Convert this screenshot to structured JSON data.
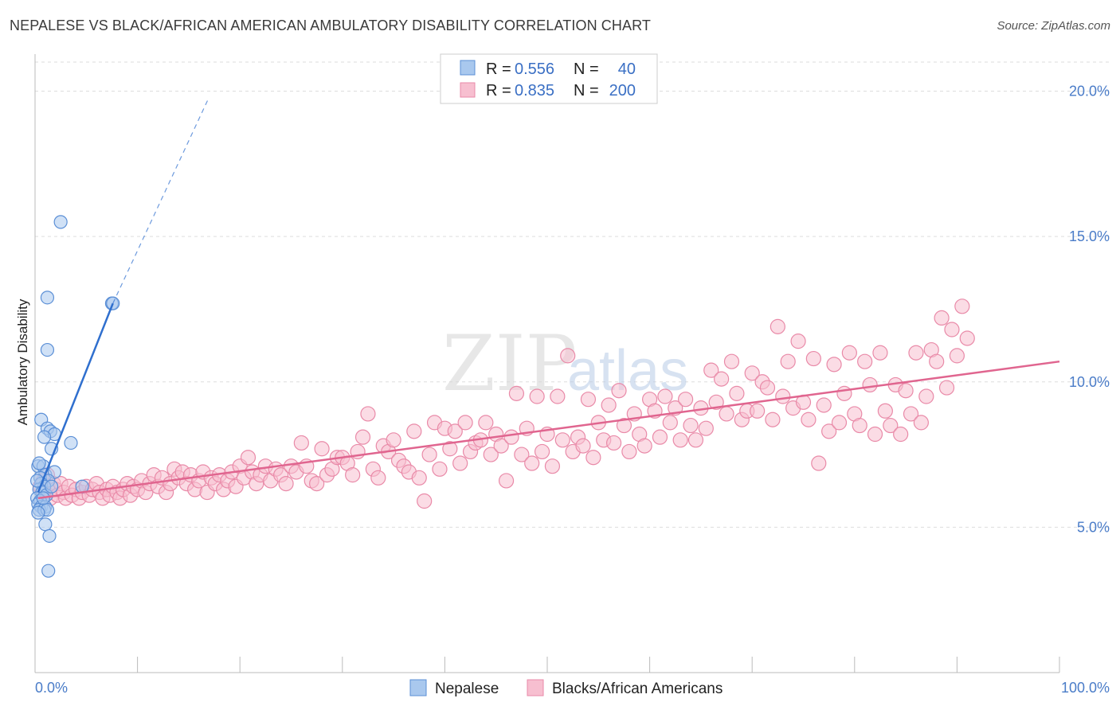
{
  "header": {
    "title": "NEPALESE VS BLACK/AFRICAN AMERICAN AMBULATORY DISABILITY CORRELATION CHART",
    "source": "Source: ZipAtlas.com"
  },
  "watermark": {
    "zip": "ZIP",
    "atlas": "atlas"
  },
  "legend_top": [
    {
      "r_label": "R =",
      "r_value": "0.556",
      "n_label": "N =",
      "n_value": "40"
    },
    {
      "r_label": "R =",
      "r_value": "0.835",
      "n_label": "N =",
      "n_value": "200"
    }
  ],
  "legend_bottom": [
    {
      "label": "Nepalese"
    },
    {
      "label": "Blacks/African Americans"
    }
  ],
  "colors": {
    "nepalese_fill": "#a9c8ee",
    "nepalese_stroke": "#5b8fd6",
    "nepalese_line": "#2f6fce",
    "black_fill": "#f7bfd0",
    "black_stroke": "#e98aa8",
    "black_line": "#e0658f",
    "grid": "#dddddd",
    "tick_text": "#4a7cc8"
  },
  "chart_data": {
    "type": "scatter",
    "title": "NEPALESE VS BLACK/AFRICAN AMERICAN AMBULATORY DISABILITY CORRELATION CHART",
    "xlabel": "",
    "ylabel": "Ambulatory Disability",
    "xlim": [
      0,
      100
    ],
    "ylim": [
      0,
      21
    ],
    "x_tick_labels": [
      "0.0%",
      "100.0%"
    ],
    "y_ticks": [
      5,
      10,
      15,
      20
    ],
    "y_tick_labels": [
      "5.0%",
      "10.0%",
      "15.0%",
      "20.0%"
    ],
    "grid": true,
    "legend_position": "top-center",
    "series": [
      {
        "name": "Nepalese",
        "R": 0.556,
        "N": 40,
        "trend": {
          "x": [
            0.3,
            7.6
          ],
          "y": [
            6.2,
            12.7
          ],
          "extends_dashed_to": [
            17,
            19.8
          ]
        },
        "points": [
          [
            2.5,
            15.5
          ],
          [
            1.2,
            12.9
          ],
          [
            7.5,
            12.7
          ],
          [
            7.6,
            12.7
          ],
          [
            1.2,
            11.1
          ],
          [
            0.6,
            8.7
          ],
          [
            1.2,
            8.4
          ],
          [
            1.5,
            8.3
          ],
          [
            1.9,
            8.2
          ],
          [
            0.9,
            8.1
          ],
          [
            3.5,
            7.9
          ],
          [
            1.6,
            7.7
          ],
          [
            0.3,
            7.1
          ],
          [
            0.8,
            7.1
          ],
          [
            1.0,
            6.8
          ],
          [
            1.9,
            6.9
          ],
          [
            0.5,
            6.7
          ],
          [
            1.3,
            6.6
          ],
          [
            0.6,
            6.5
          ],
          [
            0.9,
            6.4
          ],
          [
            4.6,
            6.4
          ],
          [
            0.4,
            6.3
          ],
          [
            0.7,
            6.2
          ],
          [
            1.1,
            6.1
          ],
          [
            0.2,
            6.0
          ],
          [
            0.5,
            5.9
          ],
          [
            0.3,
            5.8
          ],
          [
            0.6,
            5.7
          ],
          [
            1.0,
            5.7
          ],
          [
            0.4,
            5.6
          ],
          [
            0.9,
            5.6
          ],
          [
            1.2,
            5.6
          ],
          [
            0.3,
            5.5
          ],
          [
            1.0,
            5.1
          ],
          [
            1.4,
            4.7
          ],
          [
            1.3,
            3.5
          ],
          [
            0.2,
            6.6
          ],
          [
            0.4,
            7.2
          ],
          [
            0.8,
            6.0
          ],
          [
            1.6,
            6.4
          ]
        ]
      },
      {
        "name": "Blacks/African Americans",
        "R": 0.835,
        "N": 200,
        "trend": {
          "x": [
            0.3,
            100
          ],
          "y": [
            6.0,
            10.7
          ]
        },
        "points": [
          [
            0.5,
            6.4
          ],
          [
            0.8,
            6.6
          ],
          [
            1.0,
            6.2
          ],
          [
            1.2,
            6.8
          ],
          [
            1.5,
            6.0
          ],
          [
            1.8,
            6.5
          ],
          [
            2.0,
            6.3
          ],
          [
            2.2,
            6.1
          ],
          [
            2.5,
            6.5
          ],
          [
            2.8,
            6.2
          ],
          [
            3.0,
            6.0
          ],
          [
            3.3,
            6.4
          ],
          [
            3.6,
            6.1
          ],
          [
            4.0,
            6.3
          ],
          [
            4.3,
            6.0
          ],
          [
            4.6,
            6.2
          ],
          [
            5.0,
            6.4
          ],
          [
            5.3,
            6.1
          ],
          [
            5.6,
            6.3
          ],
          [
            6.0,
            6.5
          ],
          [
            6.3,
            6.2
          ],
          [
            6.6,
            6.0
          ],
          [
            7.0,
            6.3
          ],
          [
            7.3,
            6.1
          ],
          [
            7.6,
            6.4
          ],
          [
            8.0,
            6.2
          ],
          [
            8.3,
            6.0
          ],
          [
            8.6,
            6.3
          ],
          [
            9.0,
            6.5
          ],
          [
            9.3,
            6.1
          ],
          [
            9.6,
            6.4
          ],
          [
            10.0,
            6.3
          ],
          [
            10.4,
            6.6
          ],
          [
            10.8,
            6.2
          ],
          [
            11.2,
            6.5
          ],
          [
            11.6,
            6.8
          ],
          [
            12.0,
            6.4
          ],
          [
            12.4,
            6.7
          ],
          [
            12.8,
            6.2
          ],
          [
            13.2,
            6.5
          ],
          [
            13.6,
            7.0
          ],
          [
            14.0,
            6.7
          ],
          [
            14.4,
            6.9
          ],
          [
            14.8,
            6.5
          ],
          [
            15.2,
            6.8
          ],
          [
            15.6,
            6.3
          ],
          [
            16.0,
            6.6
          ],
          [
            16.4,
            6.9
          ],
          [
            16.8,
            6.2
          ],
          [
            17.2,
            6.7
          ],
          [
            17.6,
            6.5
          ],
          [
            18.0,
            6.8
          ],
          [
            18.4,
            6.3
          ],
          [
            18.8,
            6.6
          ],
          [
            19.2,
            6.9
          ],
          [
            19.6,
            6.4
          ],
          [
            20.0,
            7.1
          ],
          [
            20.4,
            6.7
          ],
          [
            20.8,
            7.4
          ],
          [
            21.2,
            6.9
          ],
          [
            21.6,
            6.5
          ],
          [
            22.0,
            6.8
          ],
          [
            22.5,
            7.1
          ],
          [
            23.0,
            6.6
          ],
          [
            23.5,
            7.0
          ],
          [
            24.0,
            6.8
          ],
          [
            24.5,
            6.5
          ],
          [
            25.0,
            7.1
          ],
          [
            25.5,
            6.9
          ],
          [
            26.0,
            7.9
          ],
          [
            26.5,
            7.1
          ],
          [
            27.0,
            6.6
          ],
          [
            27.5,
            6.5
          ],
          [
            28.0,
            7.7
          ],
          [
            28.5,
            6.8
          ],
          [
            29.0,
            7.0
          ],
          [
            29.5,
            7.4
          ],
          [
            30.0,
            7.4
          ],
          [
            30.5,
            7.2
          ],
          [
            31.0,
            6.8
          ],
          [
            31.5,
            7.6
          ],
          [
            32.0,
            8.1
          ],
          [
            32.5,
            8.9
          ],
          [
            33.0,
            7.0
          ],
          [
            33.5,
            6.7
          ],
          [
            34.0,
            7.8
          ],
          [
            34.5,
            7.6
          ],
          [
            35.0,
            8.0
          ],
          [
            35.5,
            7.3
          ],
          [
            36.0,
            7.1
          ],
          [
            36.5,
            6.9
          ],
          [
            37.0,
            8.3
          ],
          [
            37.5,
            6.7
          ],
          [
            38.0,
            5.9
          ],
          [
            38.5,
            7.5
          ],
          [
            39.0,
            8.6
          ],
          [
            39.5,
            7.0
          ],
          [
            40.0,
            8.4
          ],
          [
            40.5,
            7.7
          ],
          [
            41.0,
            8.3
          ],
          [
            41.5,
            7.2
          ],
          [
            42.0,
            8.6
          ],
          [
            42.5,
            7.6
          ],
          [
            43.0,
            7.9
          ],
          [
            43.5,
            8.0
          ],
          [
            44.0,
            8.6
          ],
          [
            44.5,
            7.5
          ],
          [
            45.0,
            8.2
          ],
          [
            45.5,
            7.8
          ],
          [
            46.0,
            6.6
          ],
          [
            46.5,
            8.1
          ],
          [
            47.0,
            9.6
          ],
          [
            47.5,
            7.5
          ],
          [
            48.0,
            8.4
          ],
          [
            48.5,
            7.2
          ],
          [
            49.0,
            9.5
          ],
          [
            49.5,
            7.6
          ],
          [
            50.0,
            8.2
          ],
          [
            50.5,
            7.1
          ],
          [
            51.0,
            9.5
          ],
          [
            51.5,
            8.0
          ],
          [
            52.0,
            10.9
          ],
          [
            52.5,
            7.6
          ],
          [
            53.0,
            8.1
          ],
          [
            53.5,
            7.8
          ],
          [
            54.0,
            9.4
          ],
          [
            54.5,
            7.4
          ],
          [
            55.0,
            8.6
          ],
          [
            55.5,
            8.0
          ],
          [
            56.0,
            9.2
          ],
          [
            56.5,
            7.9
          ],
          [
            57.0,
            9.7
          ],
          [
            57.5,
            8.5
          ],
          [
            58.0,
            7.6
          ],
          [
            58.5,
            8.9
          ],
          [
            59.0,
            8.2
          ],
          [
            59.5,
            7.8
          ],
          [
            60.0,
            9.4
          ],
          [
            60.5,
            9.0
          ],
          [
            61.0,
            8.1
          ],
          [
            61.5,
            9.5
          ],
          [
            62.0,
            8.6
          ],
          [
            62.5,
            9.1
          ],
          [
            63.0,
            8.0
          ],
          [
            63.5,
            9.4
          ],
          [
            64.0,
            8.5
          ],
          [
            64.5,
            8.0
          ],
          [
            65.0,
            9.1
          ],
          [
            65.5,
            8.4
          ],
          [
            66.0,
            10.4
          ],
          [
            66.5,
            9.3
          ],
          [
            67.0,
            10.1
          ],
          [
            67.5,
            8.9
          ],
          [
            68.0,
            10.7
          ],
          [
            68.5,
            9.6
          ],
          [
            69.0,
            8.7
          ],
          [
            69.5,
            9.0
          ],
          [
            70.0,
            10.3
          ],
          [
            70.5,
            9.0
          ],
          [
            71.0,
            10.0
          ],
          [
            71.5,
            9.8
          ],
          [
            72.0,
            8.7
          ],
          [
            72.5,
            11.9
          ],
          [
            73.0,
            9.5
          ],
          [
            73.5,
            10.7
          ],
          [
            74.0,
            9.1
          ],
          [
            74.5,
            11.4
          ],
          [
            75.0,
            9.3
          ],
          [
            75.5,
            8.7
          ],
          [
            76.0,
            10.8
          ],
          [
            76.5,
            7.2
          ],
          [
            77.0,
            9.2
          ],
          [
            77.5,
            8.3
          ],
          [
            78.0,
            10.6
          ],
          [
            78.5,
            8.6
          ],
          [
            79.0,
            9.6
          ],
          [
            79.5,
            11.0
          ],
          [
            80.0,
            8.9
          ],
          [
            80.5,
            8.5
          ],
          [
            81.0,
            10.7
          ],
          [
            81.5,
            9.9
          ],
          [
            82.0,
            8.2
          ],
          [
            82.5,
            11.0
          ],
          [
            83.0,
            9.0
          ],
          [
            83.5,
            8.5
          ],
          [
            84.0,
            9.9
          ],
          [
            84.5,
            8.2
          ],
          [
            85.0,
            9.7
          ],
          [
            85.5,
            8.9
          ],
          [
            86.0,
            11.0
          ],
          [
            86.5,
            8.6
          ],
          [
            87.0,
            9.5
          ],
          [
            87.5,
            11.1
          ],
          [
            88.0,
            10.7
          ],
          [
            88.5,
            12.2
          ],
          [
            89.0,
            9.8
          ],
          [
            89.5,
            11.8
          ],
          [
            90.0,
            10.9
          ],
          [
            90.5,
            12.6
          ],
          [
            91.0,
            11.5
          ]
        ]
      }
    ]
  }
}
